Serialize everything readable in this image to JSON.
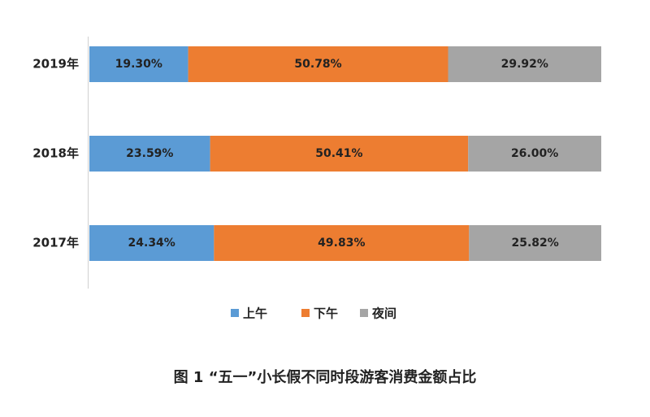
{
  "chart_data": {
    "type": "stacked-bar-horizontal-percent",
    "title": "图 1 “五一”小长假不同时段游客消费金额占比",
    "categories": [
      "2019年",
      "2018年",
      "2017年"
    ],
    "series": [
      {
        "name": "上午",
        "color": "#5b9bd5",
        "values": [
          19.3,
          23.59,
          24.34
        ],
        "value_labels": [
          "19.30%",
          "23.59%",
          "24.34%"
        ]
      },
      {
        "name": "下午",
        "color": "#ed7d31",
        "values": [
          50.78,
          50.41,
          49.83
        ],
        "value_labels": [
          "50.78%",
          "50.41%",
          "49.83%"
        ]
      },
      {
        "name": "夜间",
        "color": "#a5a5a5",
        "values": [
          29.92,
          26.0,
          25.82
        ],
        "value_labels": [
          "29.92%",
          "26.00%",
          "25.82%"
        ]
      }
    ],
    "legend": "bottom"
  }
}
